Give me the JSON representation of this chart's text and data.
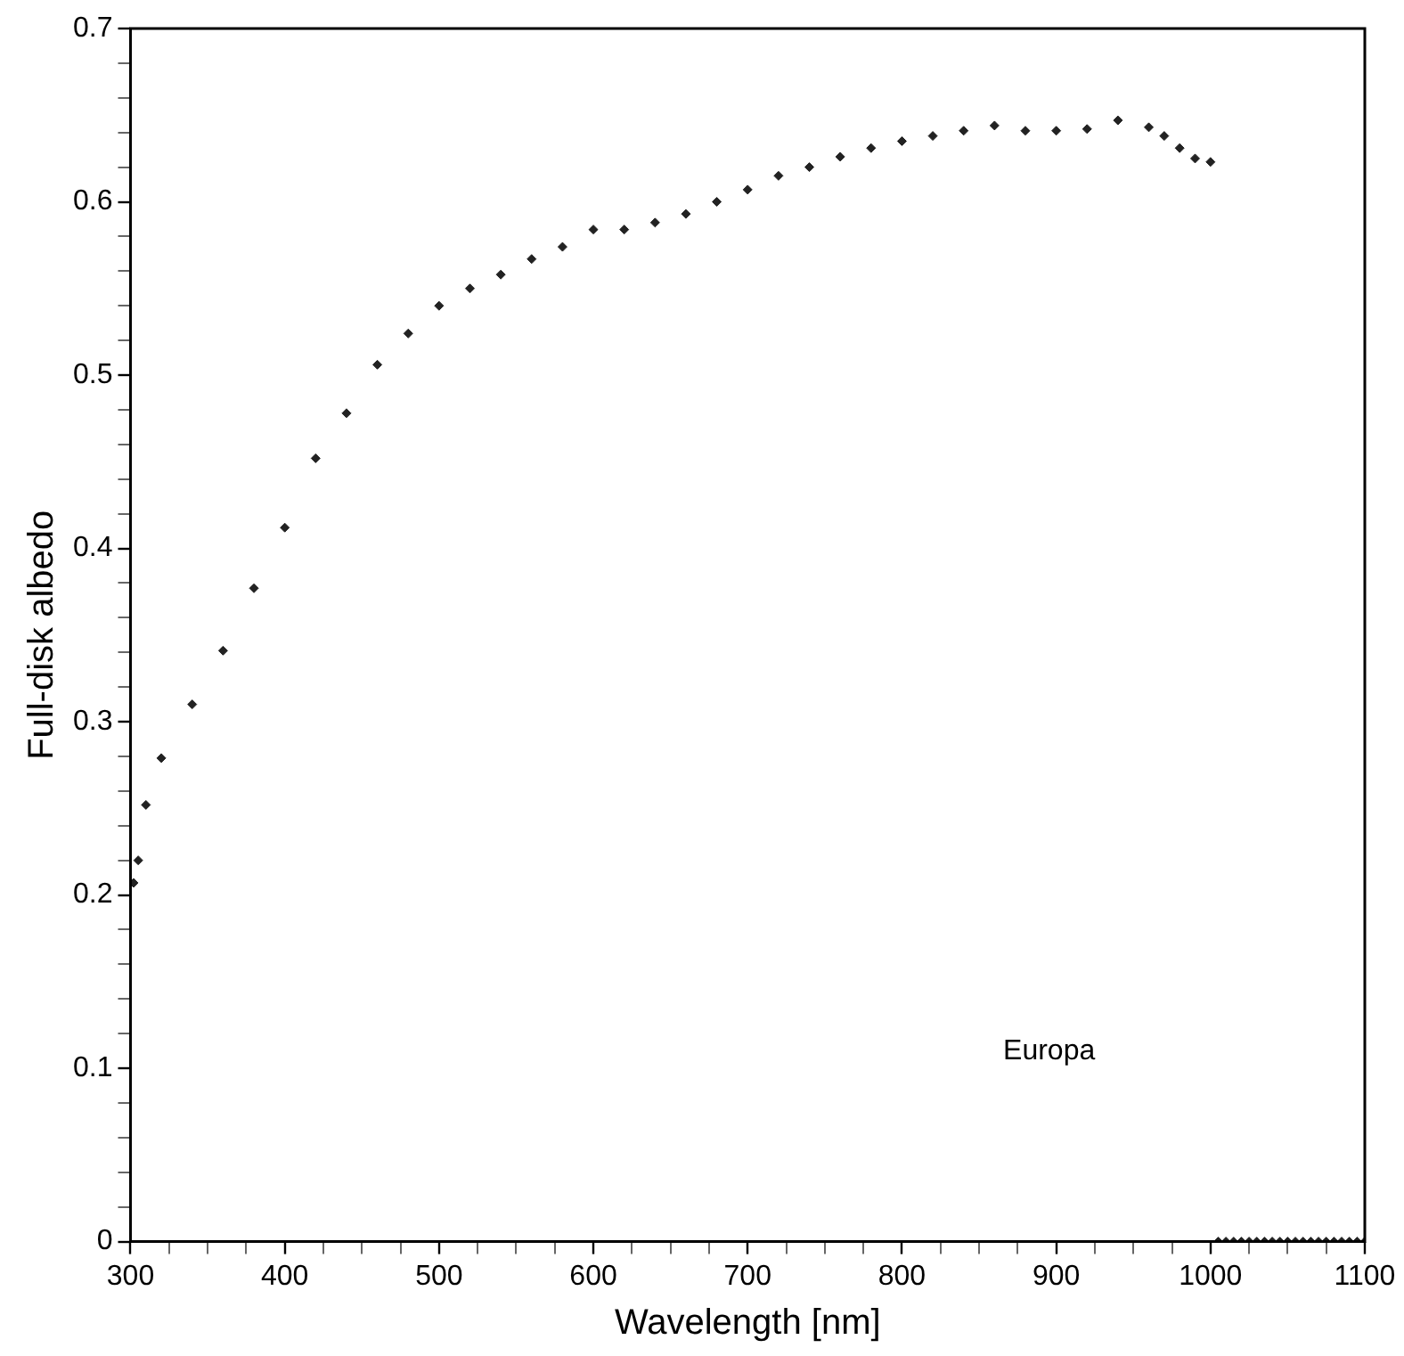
{
  "chart_data": {
    "type": "scatter",
    "xlabel": "Wavelength [nm]",
    "ylabel": "Full-disk albedo",
    "annotations": [
      "Europa"
    ],
    "marker": "diamond",
    "grid": false,
    "legend": false,
    "xlim": [
      300,
      1100
    ],
    "ylim": [
      0,
      0.7
    ],
    "xticks": [
      300,
      {
        "value": 325,
        "label": null
      },
      {
        "value": 350,
        "label": null
      },
      {
        "value": 375,
        "label": null
      },
      400,
      {
        "value": 425,
        "label": null
      },
      {
        "value": 450,
        "label": null
      },
      {
        "value": 475,
        "label": null
      },
      500,
      {
        "value": 525,
        "label": null
      },
      {
        "value": 550,
        "label": null
      },
      {
        "value": 575,
        "label": null
      },
      600,
      {
        "value": 625,
        "label": null
      },
      {
        "value": 650,
        "label": null
      },
      {
        "value": 675,
        "label": null
      },
      700,
      {
        "value": 725,
        "label": null
      },
      {
        "value": 750,
        "label": null
      },
      {
        "value": 775,
        "label": null
      },
      800,
      {
        "value": 825,
        "label": null
      },
      {
        "value": 850,
        "label": null
      },
      {
        "value": 875,
        "label": null
      },
      900,
      {
        "value": 925,
        "label": null
      },
      {
        "value": 950,
        "label": null
      },
      {
        "value": 975,
        "label": null
      },
      1000,
      {
        "value": 1025,
        "label": null
      },
      {
        "value": 1050,
        "label": null
      },
      {
        "value": 1075,
        "label": null
      },
      1100
    ],
    "yticks": [
      0,
      {
        "value": 0.02,
        "label": null
      },
      {
        "value": 0.04,
        "label": null
      },
      {
        "value": 0.06,
        "label": null
      },
      {
        "value": 0.08,
        "label": null
      },
      0.1,
      {
        "value": 0.12,
        "label": null
      },
      {
        "value": 0.14,
        "label": null
      },
      {
        "value": 0.16,
        "label": null
      },
      {
        "value": 0.18,
        "label": null
      },
      0.2,
      {
        "value": 0.22,
        "label": null
      },
      {
        "value": 0.24,
        "label": null
      },
      {
        "value": 0.26,
        "label": null
      },
      {
        "value": 0.28,
        "label": null
      },
      0.3,
      {
        "value": 0.32,
        "label": null
      },
      {
        "value": 0.34,
        "label": null
      },
      {
        "value": 0.36,
        "label": null
      },
      {
        "value": 0.38,
        "label": null
      },
      0.4,
      {
        "value": 0.42,
        "label": null
      },
      {
        "value": 0.44,
        "label": null
      },
      {
        "value": 0.46,
        "label": null
      },
      {
        "value": 0.48,
        "label": null
      },
      0.5,
      {
        "value": 0.52,
        "label": null
      },
      {
        "value": 0.54,
        "label": null
      },
      {
        "value": 0.56,
        "label": null
      },
      {
        "value": 0.58,
        "label": null
      },
      0.6,
      {
        "value": 0.62,
        "label": null
      },
      {
        "value": 0.64,
        "label": null
      },
      {
        "value": 0.66,
        "label": null
      },
      {
        "value": 0.68,
        "label": null
      },
      0.7
    ],
    "series": [
      {
        "color": "#222222",
        "x": [
          302,
          305,
          310,
          320,
          340,
          360,
          380,
          400,
          420,
          440,
          460,
          480,
          500,
          520,
          540,
          560,
          580,
          600,
          620,
          640,
          660,
          680,
          700,
          720,
          740,
          760,
          780,
          800,
          820,
          840,
          860,
          880,
          900,
          920,
          940,
          960,
          970,
          980,
          990,
          1000,
          1005,
          1010,
          1015,
          1020,
          1025,
          1030,
          1035,
          1040,
          1045,
          1050,
          1055,
          1060,
          1065,
          1070,
          1075,
          1080,
          1085,
          1090,
          1095,
          1100
        ],
        "values": [
          0.207,
          0.22,
          0.252,
          0.279,
          0.31,
          0.341,
          0.377,
          0.412,
          0.452,
          0.478,
          0.506,
          0.524,
          0.54,
          0.55,
          0.558,
          0.567,
          0.574,
          0.584,
          0.584,
          0.588,
          0.593,
          0.6,
          0.607,
          0.615,
          0.62,
          0.626,
          0.631,
          0.635,
          0.638,
          0.641,
          0.644,
          0.641,
          0.641,
          0.642,
          0.647,
          0.643,
          0.638,
          0.631,
          0.625,
          0.623,
          0,
          0,
          0,
          0,
          0,
          0,
          0,
          0,
          0,
          0,
          0,
          0,
          0,
          0,
          0,
          0,
          0,
          0,
          0,
          0
        ]
      }
    ]
  }
}
